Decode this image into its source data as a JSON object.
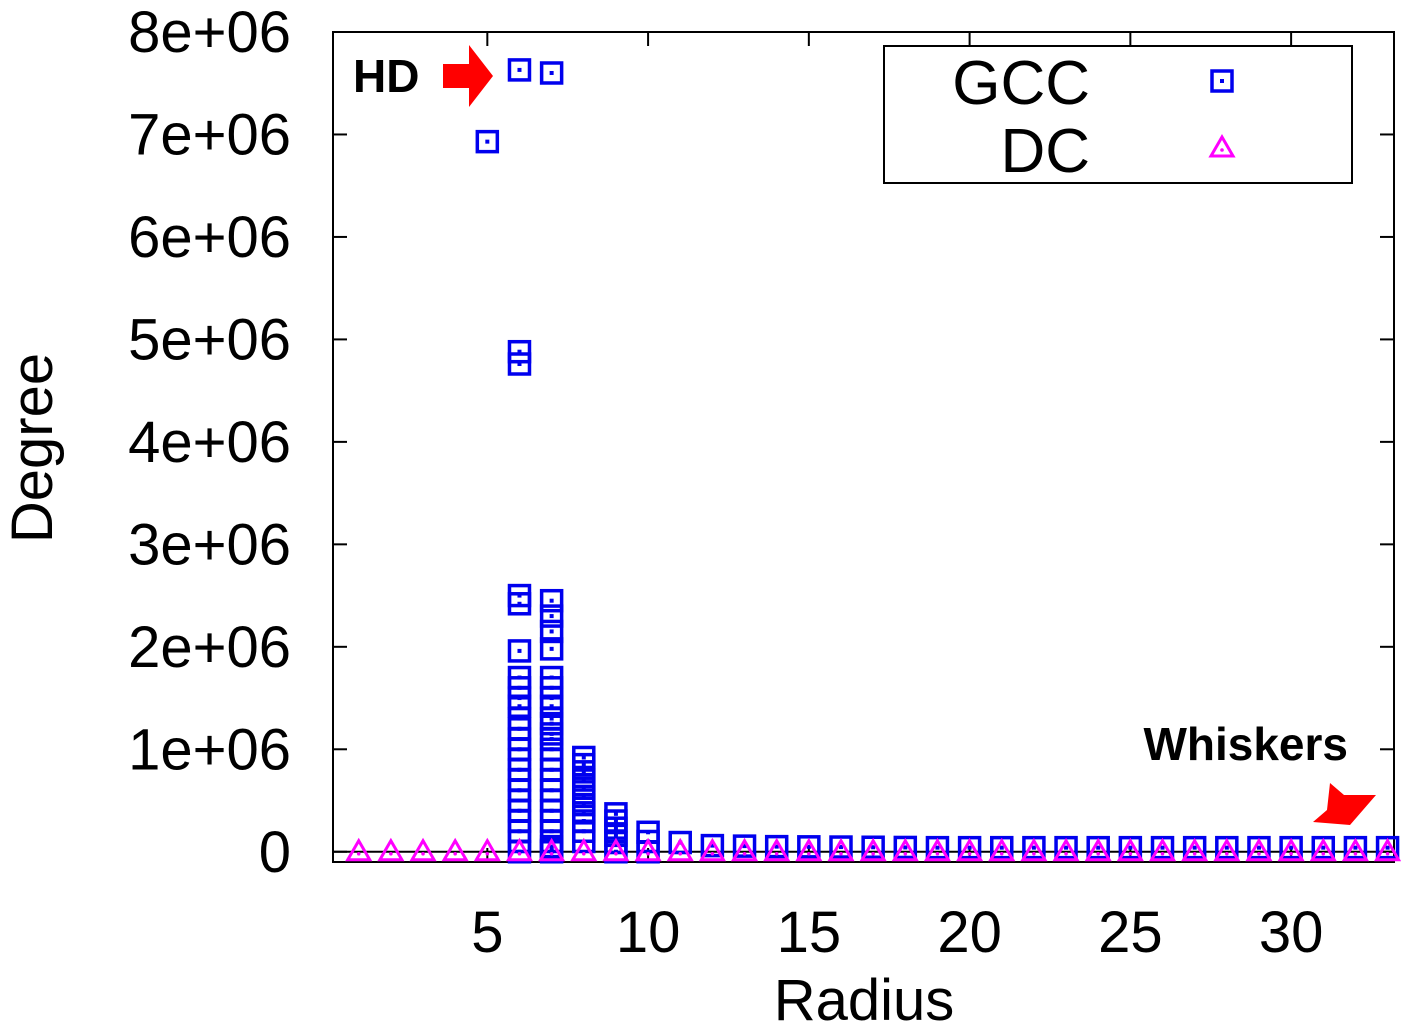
{
  "chart_data": {
    "type": "scatter",
    "title": "",
    "xlabel": "Radius",
    "ylabel": "Degree",
    "xlim": [
      0.2,
      33.2
    ],
    "ylim": [
      -100000,
      8000000
    ],
    "x_ticks": [
      5,
      10,
      15,
      20,
      25,
      30
    ],
    "y_ticks": [
      0,
      1000000,
      2000000,
      3000000,
      4000000,
      5000000,
      6000000,
      7000000,
      8000000
    ],
    "y_tick_labels": [
      "0",
      "1e+06",
      "2e+06",
      "3e+06",
      "4e+06",
      "5e+06",
      "6e+06",
      "7e+06",
      "8e+06"
    ],
    "grid": false,
    "legend_position": "top-right",
    "colors": {
      "GCC": "#0000ee",
      "DC": "#ff00ff",
      "arrow": "#ff0000"
    },
    "annotations": [
      {
        "text": "HD",
        "near": "GCC peak at radius 6"
      },
      {
        "text": "Whiskers",
        "near": "small radii tail at right"
      }
    ],
    "series": [
      {
        "name": "GCC",
        "marker": "square-with-dot",
        "x": [
          5,
          6,
          6,
          6,
          6,
          6,
          6,
          6,
          6,
          6,
          6,
          6,
          6,
          6,
          6,
          6,
          6,
          6,
          6,
          6,
          6,
          6,
          6,
          6,
          6,
          7,
          7,
          7,
          7,
          7,
          7,
          7,
          7,
          7,
          7,
          7,
          7,
          7,
          7,
          7,
          7,
          7,
          7,
          7,
          7,
          7,
          7,
          7,
          7,
          7,
          7,
          7,
          7,
          8,
          8,
          8,
          8,
          8,
          8,
          8,
          8,
          8,
          8,
          8,
          9,
          9,
          9,
          9,
          9,
          9,
          10,
          10,
          10,
          11,
          12,
          13,
          14,
          15,
          16,
          17,
          18,
          19,
          20,
          21,
          22,
          23,
          24,
          25,
          26,
          27,
          28,
          29,
          30,
          31,
          32,
          33
        ],
        "y": [
          6930000,
          7630000,
          4880000,
          4760000,
          2500000,
          2420000,
          1960000,
          1700000,
          1600000,
          1500000,
          1420000,
          1300000,
          1200000,
          1100000,
          1000000,
          900000,
          800000,
          700000,
          600000,
          500000,
          400000,
          300000,
          200000,
          100000,
          0,
          7600000,
          2450000,
          2300000,
          2150000,
          1980000,
          1700000,
          1600000,
          1500000,
          1420000,
          1300000,
          1250000,
          1150000,
          1100000,
          1000000,
          900000,
          800000,
          700000,
          600000,
          500000,
          400000,
          300000,
          200000,
          100000,
          50000,
          20000,
          10000,
          5000,
          0,
          920000,
          850000,
          780000,
          700000,
          620000,
          540000,
          460000,
          380000,
          300000,
          200000,
          100000,
          370000,
          300000,
          230000,
          160000,
          90000,
          0,
          190000,
          100000,
          0,
          90000,
          60000,
          55000,
          50000,
          48000,
          46000,
          44000,
          42000,
          40000,
          40000,
          40000,
          40000,
          40000,
          40000,
          40000,
          40000,
          40000,
          40000,
          40000,
          40000,
          40000,
          40000,
          40000
        ]
      },
      {
        "name": "DC",
        "marker": "triangle-with-dot",
        "x": [
          1,
          2,
          3,
          4,
          5,
          6,
          7,
          8,
          9,
          10,
          11,
          12,
          13,
          14,
          15,
          16,
          17,
          18,
          19,
          20,
          21,
          22,
          23,
          24,
          25,
          26,
          27,
          28,
          29,
          30,
          31,
          32,
          33
        ],
        "y": [
          0,
          0,
          0,
          0,
          0,
          0,
          0,
          0,
          0,
          0,
          0,
          0,
          0,
          0,
          0,
          0,
          0,
          0,
          0,
          0,
          0,
          0,
          0,
          0,
          0,
          0,
          0,
          0,
          0,
          0,
          0,
          0,
          0
        ]
      }
    ]
  }
}
